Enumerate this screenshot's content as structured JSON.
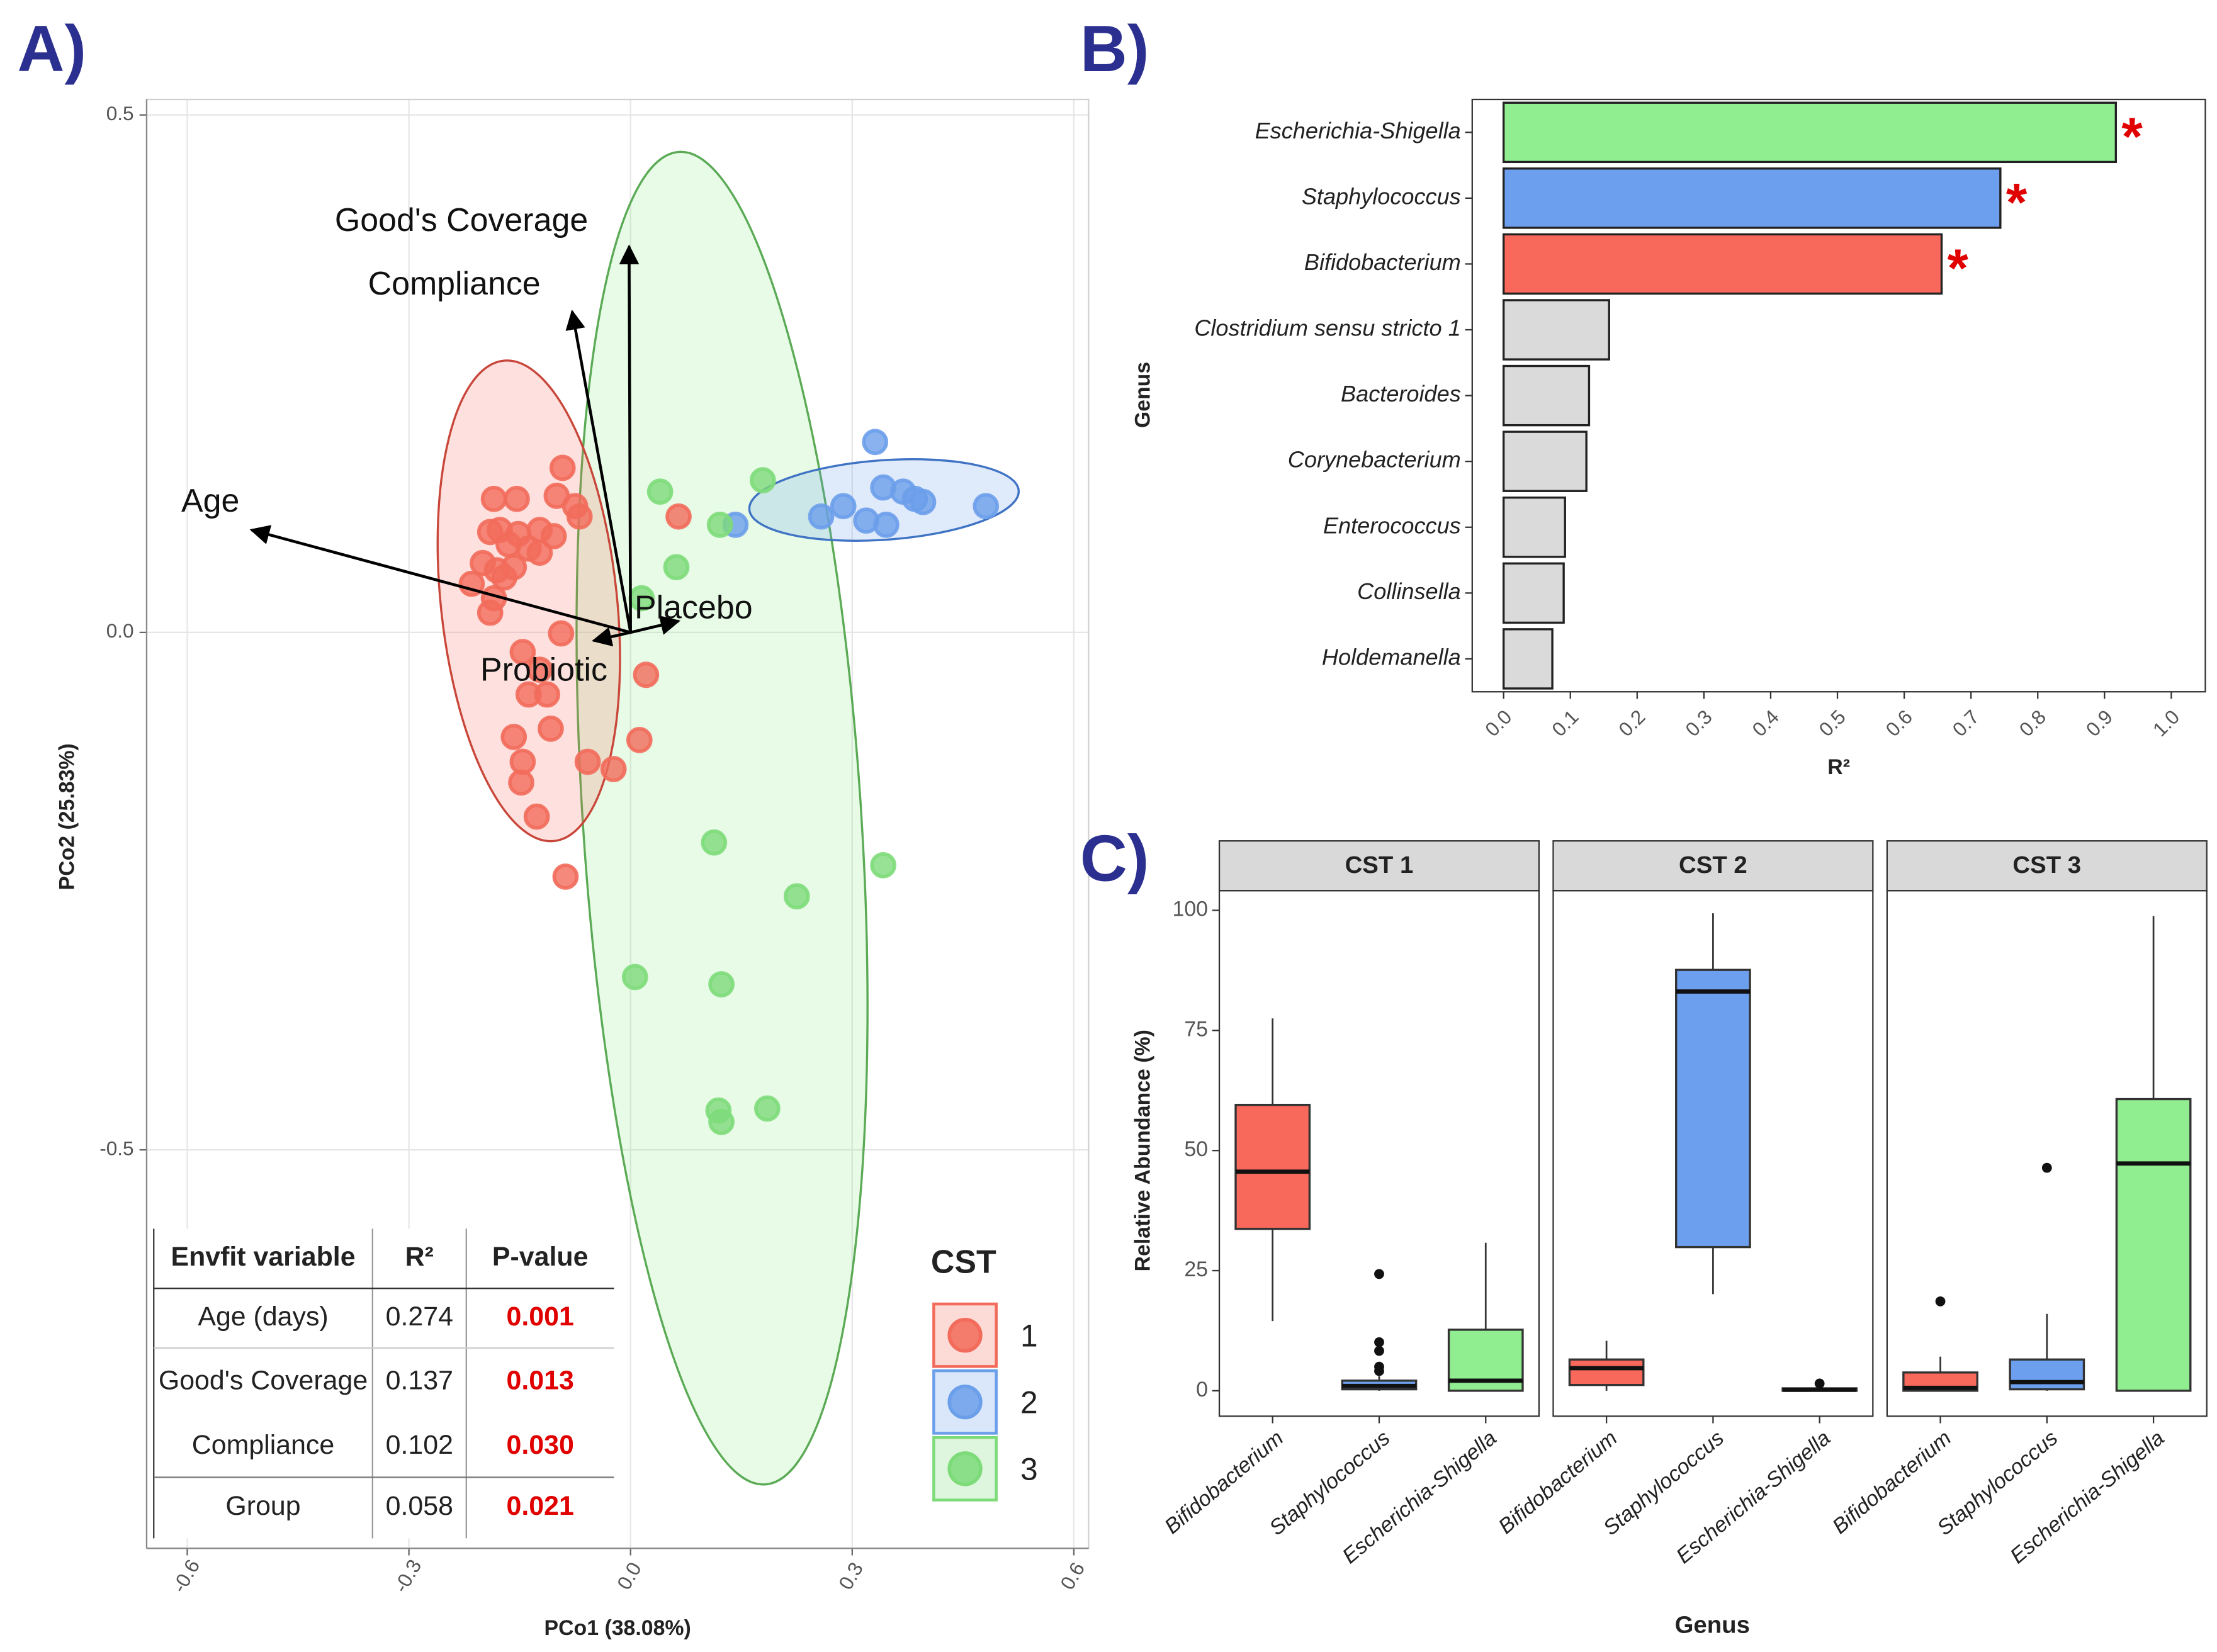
{
  "chart_data": [
    {
      "type": "scatter",
      "panel": "A)",
      "xlabel": "PCo1 (38.08%)",
      "ylabel": "PCo2 (25.83%)",
      "xlim": [
        -0.655,
        0.62
      ],
      "ylim": [
        -0.885,
        0.515
      ],
      "xticks": [
        -0.6,
        -0.3,
        {
          "value": 0,
          "label": "0.0"
        },
        0.3,
        0.6
      ],
      "yticks": [
        -0.5,
        {
          "value": 0,
          "label": "0.0"
        },
        0.5
      ],
      "grid": true,
      "legend_title": "CST",
      "legend_position": "bottom-right",
      "series": [
        {
          "name": "1",
          "color": "#F26B5B",
          "x": [
            -0.092,
            -0.185,
            -0.154,
            -0.1,
            -0.075,
            -0.069,
            -0.19,
            -0.177,
            -0.152,
            -0.123,
            -0.104,
            -0.138,
            -0.165,
            -0.123,
            -0.2,
            -0.181,
            -0.158,
            -0.215,
            -0.171,
            -0.185,
            -0.19,
            -0.094,
            -0.146,
            -0.123,
            -0.138,
            -0.113,
            -0.108,
            -0.158,
            -0.146,
            -0.148,
            -0.127,
            -0.088,
            0.065,
            0.021,
            0.012,
            -0.023,
            -0.058
          ],
          "y": [
            0.159,
            0.129,
            0.129,
            0.132,
            0.122,
            0.112,
            0.097,
            0.099,
            0.095,
            0.099,
            0.093,
            0.081,
            0.085,
            0.077,
            0.067,
            0.06,
            0.063,
            0.047,
            0.053,
            0.033,
            0.019,
            -0.001,
            -0.019,
            -0.036,
            -0.06,
            -0.06,
            -0.093,
            -0.101,
            -0.125,
            -0.145,
            -0.178,
            -0.236,
            0.112,
            -0.041,
            -0.104,
            -0.132,
            -0.125
          ]
        },
        {
          "name": "2",
          "color": "#6B9FEA",
          "x": [
            0.331,
            0.142,
            0.258,
            0.288,
            0.319,
            0.342,
            0.369,
            0.385,
            0.396,
            0.346,
            0.481
          ],
          "y": [
            0.184,
            0.104,
            0.112,
            0.122,
            0.108,
            0.14,
            0.136,
            0.129,
            0.126,
            0.104,
            0.122
          ]
        },
        {
          "name": "3",
          "color": "#7EDB7A",
          "x": [
            0.04,
            0.179,
            0.121,
            0.062,
            0.015,
            0.113,
            0.342,
            0.225,
            0.006,
            0.123,
            0.119,
            0.185,
            0.123
          ],
          "y": [
            0.136,
            0.147,
            0.104,
            0.063,
            0.033,
            -0.203,
            -0.225,
            -0.255,
            -0.333,
            -0.34,
            -0.462,
            -0.46,
            -0.473
          ]
        }
      ],
      "arrows": [
        {
          "label": "Good's Coverage",
          "x": -0.002,
          "y": 0.373
        },
        {
          "label": "Compliance",
          "x": -0.079,
          "y": 0.31
        },
        {
          "label": "Age",
          "x": -0.513,
          "y": 0.099
        },
        {
          "label": "Placebo",
          "x": 0.065,
          "y": 0.011
        },
        {
          "label": "Probiotic",
          "x": -0.05,
          "y": -0.008
        }
      ],
      "table": {
        "columns": [
          "Envfit variable",
          "R²",
          "P-value"
        ],
        "rows": [
          [
            "Age (days)",
            "0.274",
            "0.001"
          ],
          [
            "Good's Coverage",
            "0.137",
            "0.013"
          ],
          [
            "Compliance",
            "0.102",
            "0.030"
          ],
          [
            "Group",
            "0.058",
            "0.021"
          ]
        ]
      }
    },
    {
      "type": "hbar",
      "panel": "B)",
      "xlabel": "R²",
      "ylabel": "Genus",
      "categories": [
        "Escherichia-Shigella",
        "Staphylococcus",
        "Bifidobacterium",
        "Clostridium sensu stricto 1",
        "Bacteroides",
        "Corynebacterium",
        "Enterococcus",
        "Collinsella",
        "Holdemanella"
      ],
      "values": [
        0.917,
        0.744,
        0.656,
        0.158,
        0.128,
        0.124,
        0.092,
        0.09,
        0.073
      ],
      "colors": [
        "#90EE90",
        "#6CA0EE",
        "#F8695B",
        "#DADADA",
        "#DADADA",
        "#DADADA",
        "#DADADA",
        "#DADADA",
        "#DADADA"
      ],
      "significance": [
        "*",
        "*",
        "*",
        null,
        null,
        null,
        null,
        null,
        null
      ],
      "xlim": [
        -0.047,
        1.051
      ],
      "xticks": [
        {
          "value": 0,
          "label": "0.0"
        },
        0.1,
        0.2,
        0.3,
        0.4,
        0.5,
        0.6,
        0.7,
        0.8,
        0.9,
        {
          "value": 1,
          "label": "1.0"
        }
      ]
    },
    {
      "type": "box",
      "panel": "C)",
      "xlabel": "Genus",
      "ylabel": "Relative Abundance (%)",
      "categories": [
        "Bifidobacterium",
        "Staphylococcus",
        "Escherichia-Shigella"
      ],
      "colors": [
        "#F8695B",
        "#6CA0EE",
        "#90EE90"
      ],
      "ylim": [
        -5.3,
        104.1
      ],
      "yticks": [
        0,
        25,
        50,
        75,
        100
      ],
      "facets": [
        {
          "title": "CST 1",
          "boxes": [
            {
              "min": 14.5,
              "q1": 33.7,
              "median": 45.6,
              "q3": 59.5,
              "max": 77.5,
              "outliers": []
            },
            {
              "min": 0,
              "q1": 0.3,
              "median": 1,
              "q3": 2.1,
              "max": 3,
              "outliers": [
                24.3,
                10.1,
                8.3,
                5.0,
                4.1
              ]
            },
            {
              "min": 0,
              "q1": 0,
              "median": 2.1,
              "q3": 12.7,
              "max": 30.8,
              "outliers": []
            }
          ]
        },
        {
          "title": "CST 2",
          "boxes": [
            {
              "min": 0,
              "q1": 1.2,
              "median": 4.7,
              "q3": 6.5,
              "max": 10.4,
              "outliers": []
            },
            {
              "min": 20.1,
              "q1": 29.9,
              "median": 83.1,
              "q3": 87.6,
              "max": 99.4,
              "outliers": []
            },
            {
              "min": 0,
              "q1": 0,
              "median": 0.2,
              "q3": 0.5,
              "max": 0.5,
              "outliers": [
                1.5
              ]
            }
          ]
        },
        {
          "title": "CST 3",
          "boxes": [
            {
              "min": 0,
              "q1": 0,
              "median": 0.6,
              "q3": 3.8,
              "max": 7.1,
              "outliers": [
                18.6
              ]
            },
            {
              "min": 0,
              "q1": 0.3,
              "median": 1.8,
              "q3": 6.5,
              "max": 16.0,
              "outliers": [
                46.4
              ]
            },
            {
              "min": 0,
              "q1": 0,
              "median": 47.3,
              "q3": 60.7,
              "max": 98.8,
              "outliers": []
            }
          ]
        }
      ]
    }
  ]
}
